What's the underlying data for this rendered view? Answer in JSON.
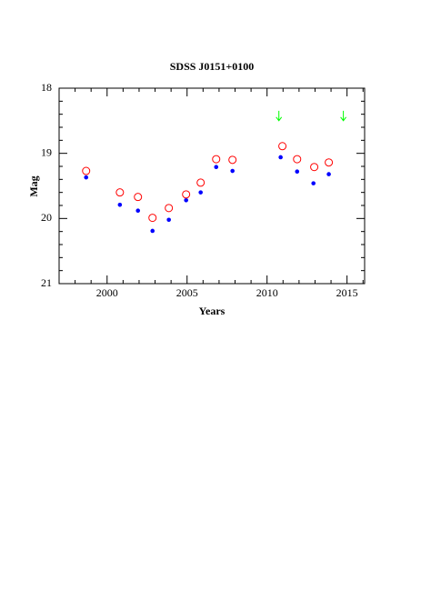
{
  "chart_data": {
    "type": "scatter",
    "title": "SDSS J0151+0100",
    "xlabel": "Years",
    "ylabel": "Mag",
    "xlim": [
      1997,
      2016.1
    ],
    "ylim": [
      18,
      21
    ],
    "y_inverted": true,
    "xticks": [
      2000,
      2005,
      2010,
      2015
    ],
    "yticks": [
      18,
      19,
      20,
      21
    ],
    "xminorticks": [
      1997,
      1998,
      1999,
      2001,
      2002,
      2003,
      2004,
      2006,
      2007,
      2008,
      2009,
      2011,
      2012,
      2013,
      2014,
      2016
    ],
    "yminorticks": [
      18.2,
      18.4,
      18.6,
      18.8,
      19.2,
      19.4,
      19.6,
      19.8,
      20.2,
      20.4,
      20.6,
      20.8
    ],
    "series": [
      {
        "color": "#0000ff",
        "marker": "dot",
        "x": [
          1998.69,
          2000.8,
          2001.93,
          2002.84,
          2003.86,
          2004.94,
          2005.85,
          2006.82,
          2007.84,
          2010.85,
          2011.88,
          2012.9,
          2013.86
        ],
        "values": [
          19.37,
          19.79,
          19.88,
          20.19,
          20.02,
          19.72,
          19.6,
          19.21,
          19.27,
          19.06,
          19.28,
          19.46,
          19.32
        ]
      },
      {
        "color": "#ff0000",
        "marker": "circle",
        "x": [
          1998.69,
          2000.8,
          2001.93,
          2002.84,
          2003.86,
          2004.94,
          2005.85,
          2006.82,
          2007.84,
          2010.96,
          2011.88,
          2012.95,
          2013.86
        ],
        "values": [
          19.27,
          19.6,
          19.67,
          19.99,
          19.84,
          19.63,
          19.45,
          19.09,
          19.1,
          18.89,
          19.09,
          19.21,
          19.14
        ]
      },
      {
        "color": "#00ff00",
        "marker": "arrow-down",
        "x": [
          2010.74,
          2014.77
        ],
        "values": [
          18.43,
          18.43
        ]
      }
    ]
  }
}
